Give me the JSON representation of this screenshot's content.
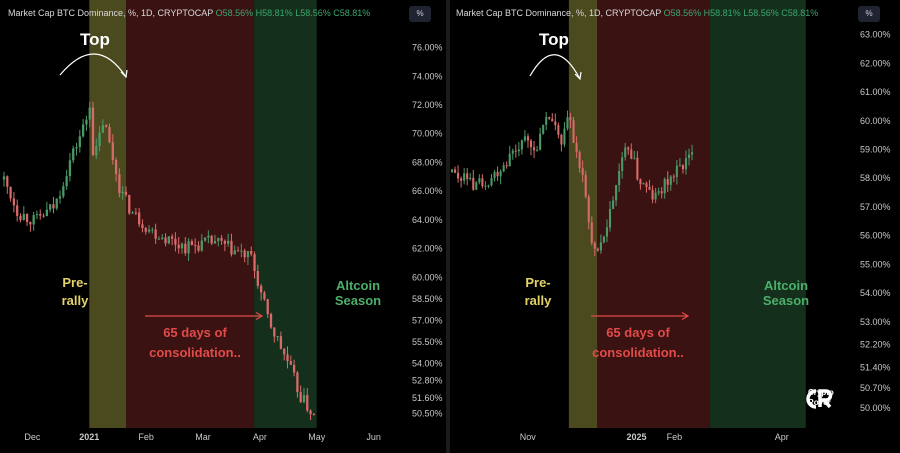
{
  "colors": {
    "up": "#4a9a68",
    "down": "#d86a6a",
    "prerally_band": "#4a4a1e",
    "consolidation_band": "#3a1212",
    "altcoin_band": "#14301c",
    "annotation_yellow": "#e4d36a",
    "annotation_red": "#e24a4a",
    "annotation_green": "#4caf6a"
  },
  "icons": {
    "top_arrow": "curved-arrow-icon",
    "logo": "crypto-rover-logo-icon"
  },
  "chart_data": [
    {
      "type": "candlestick",
      "header": {
        "prefix": "Market Cap BTC Dominance, %, 1D, CRYPTOCAP",
        "o_label": "O",
        "o_value": "58.56%",
        "h_label": "H",
        "h_value": "58.81%",
        "l_label": "L",
        "l_value": "58.56%",
        "c_label": "C",
        "c_value": "58.81%"
      },
      "scale_button": "%",
      "x_ticks": [
        "Dec",
        "2021",
        "Feb",
        "Mar",
        "Apr",
        "May",
        "Jun"
      ],
      "x_tick_pos": [
        0.5,
        1.5,
        2.5,
        3.5,
        4.5,
        5.5,
        6.5
      ],
      "xlim": [
        0,
        7
      ],
      "y_ticks": [
        "76.00%",
        "74.00%",
        "72.00%",
        "70.00%",
        "68.00%",
        "66.00%",
        "64.00%",
        "62.00%",
        "60.00%",
        "58.50%",
        "57.00%",
        "55.50%",
        "54.00%",
        "52.80%",
        "51.60%",
        "50.50%"
      ],
      "y_tick_values": [
        76.0,
        74.0,
        72.0,
        70.0,
        68.0,
        66.0,
        64.0,
        62.0,
        60.0,
        58.5,
        57.0,
        55.5,
        54.0,
        52.8,
        51.6,
        50.5
      ],
      "ylim": [
        49.5,
        77.5
      ],
      "path": [
        [
          0,
          66.8
        ],
        [
          0.25,
          64.5
        ],
        [
          0.55,
          63.9
        ],
        [
          0.9,
          65.0
        ],
        [
          1.15,
          68.0
        ],
        [
          1.45,
          71.0
        ],
        [
          1.5,
          72.6
        ],
        [
          1.58,
          68.0
        ],
        [
          1.75,
          71.0
        ],
        [
          2.05,
          66.0
        ],
        [
          2.25,
          64.5
        ],
        [
          2.6,
          63.2
        ],
        [
          3.2,
          62.1
        ],
        [
          3.7,
          62.5
        ],
        [
          4.35,
          61.3
        ],
        [
          4.65,
          57.0
        ],
        [
          5.0,
          54.0
        ],
        [
          5.2,
          51.8
        ],
        [
          5.45,
          50.3
        ]
      ],
      "candles": 95,
      "bands": [
        {
          "label": "prerally",
          "from": 1.5,
          "to": 2.15
        },
        {
          "label": "consolidation",
          "from": 2.15,
          "to": 4.4
        },
        {
          "label": "altcoin",
          "from": 4.4,
          "to": 5.5
        }
      ],
      "annotations": {
        "top": "Top",
        "prerally_1": "Pre-",
        "prerally_2": "rally",
        "consol_1": "65 days of",
        "consol_2": "consolidation..",
        "alt_1": "Altcoin",
        "alt_2": "Season"
      }
    },
    {
      "type": "candlestick",
      "header": {
        "prefix": "Market Cap BTC Dominance, %, 1D, CRYPTOCAP",
        "o_label": "O",
        "o_value": "58.56%",
        "h_label": "H",
        "h_value": "58.81%",
        "l_label": "L",
        "l_value": "58.56%",
        "c_label": "C",
        "c_value": "58.81%"
      },
      "scale_button": "%",
      "x_ticks": [
        "Nov",
        "2025",
        "Feb",
        "Apr"
      ],
      "x_tick_pos": [
        1.2,
        2.92,
        3.52,
        5.22
      ],
      "xlim": [
        0,
        6.3
      ],
      "y_ticks": [
        "63.00%",
        "62.00%",
        "61.00%",
        "60.00%",
        "59.00%",
        "58.00%",
        "57.00%",
        "56.00%",
        "55.00%",
        "54.00%",
        "53.00%",
        "52.20%",
        "51.40%",
        "50.70%",
        "50.00%"
      ],
      "y_tick_values": [
        63.0,
        62.0,
        61.0,
        60.0,
        59.0,
        58.0,
        57.0,
        56.0,
        55.0,
        54.0,
        53.0,
        52.2,
        51.4,
        50.7,
        50.0
      ],
      "ylim": [
        49.3,
        63.3
      ],
      "path": [
        [
          0,
          58.2
        ],
        [
          0.3,
          57.8
        ],
        [
          0.6,
          58.0
        ],
        [
          0.85,
          58.6
        ],
        [
          1.1,
          59.3
        ],
        [
          1.3,
          59.0
        ],
        [
          1.55,
          60.2
        ],
        [
          1.75,
          59.0
        ],
        [
          1.85,
          60.7
        ],
        [
          1.9,
          59.4
        ],
        [
          2.05,
          58.2
        ],
        [
          2.2,
          56.0
        ],
        [
          2.3,
          55.2
        ],
        [
          2.5,
          56.8
        ],
        [
          2.65,
          58.3
        ],
        [
          2.8,
          59.2
        ],
        [
          2.95,
          58.0
        ],
        [
          3.2,
          57.3
        ],
        [
          3.45,
          58.0
        ],
        [
          3.7,
          58.6
        ],
        [
          3.8,
          58.8
        ]
      ],
      "candles": 80,
      "bands": [
        {
          "label": "prerally",
          "from": 1.85,
          "to": 2.3
        },
        {
          "label": "consolidation",
          "from": 2.3,
          "to": 4.08
        },
        {
          "label": "altcoin",
          "from": 4.08,
          "to": 5.6
        }
      ],
      "annotations": {
        "top": "Top",
        "prerally_1": "Pre-",
        "prerally_2": "rally",
        "consol_1": "65 days of",
        "consol_2": "consolidation..",
        "alt_1": "Altcoin",
        "alt_2": "Season"
      }
    }
  ],
  "logo": {
    "line1": "Crypto",
    "line2": "Rover"
  }
}
